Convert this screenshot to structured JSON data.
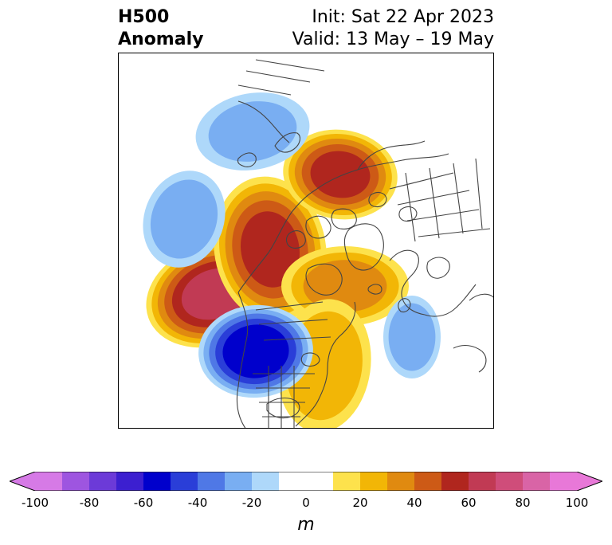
{
  "title": {
    "left_line1": "H500",
    "left_line2": "Anomaly",
    "right_line1": "Init: Sat 22 Apr 2023",
    "right_line2": "Valid: 13 May – 19 May"
  },
  "colorbar": {
    "unit": "m",
    "extend": "both",
    "ticks": [
      "-100",
      "-80",
      "-60",
      "-40",
      "-20",
      "0",
      "20",
      "40",
      "60",
      "80",
      "100"
    ],
    "bounds": [
      -100,
      100
    ],
    "step": 10,
    "colors": [
      "#d67ae6",
      "#9e55e0",
      "#6c3ad8",
      "#3c1fd0",
      "#0000cc",
      "#2a3ed8",
      "#4f78e6",
      "#79aef2",
      "#aed8fa",
      "#ffffff",
      "#ffffff",
      "#fde24c",
      "#f2b606",
      "#e08a10",
      "#cd5a16",
      "#b0261e",
      "#c13a54",
      "#cf4d7a",
      "#d964a6",
      "#e878d8"
    ],
    "under_color": "#d67ae6",
    "over_color": "#e878d8"
  },
  "map": {
    "projection": "north-polar-stereographic",
    "coastline_color": "#444444",
    "anomaly_centers": [
      {
        "region": "North Pacific / Gulf of Alaska",
        "value_m": 65,
        "sign": "positive"
      },
      {
        "region": "Alaska / Arctic",
        "value_m": 55,
        "sign": "positive"
      },
      {
        "region": "Northern Siberia",
        "value_m": 55,
        "sign": "positive"
      },
      {
        "region": "Greenland / North Atlantic",
        "value_m": 35,
        "sign": "positive"
      },
      {
        "region": "Eastern United States",
        "value_m": 30,
        "sign": "positive"
      },
      {
        "region": "Western United States",
        "value_m": -60,
        "sign": "negative"
      },
      {
        "region": "Central North Atlantic",
        "value_m": -30,
        "sign": "negative"
      },
      {
        "region": "Central North Pacific",
        "value_m": -30,
        "sign": "negative"
      },
      {
        "region": "Europe",
        "value_m": -25,
        "sign": "negative"
      }
    ]
  }
}
